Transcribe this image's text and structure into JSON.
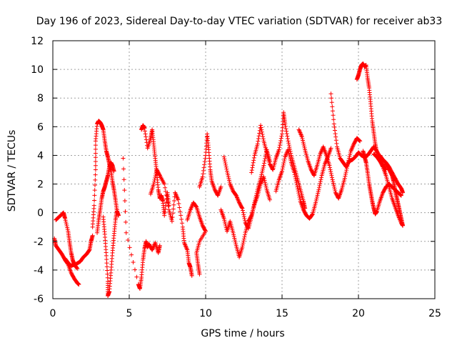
{
  "chart_data": {
    "type": "scatter",
    "title": "Day 196 of 2023, Sidereal Day-to-day VTEC variation (SDTVAR) for receiver ab33",
    "xlabel": "GPS time / hours",
    "ylabel": "SDTVAR / TECUs",
    "xlim": [
      0,
      25
    ],
    "ylim": [
      -6,
      12
    ],
    "xticks": [
      "0",
      "5",
      "10",
      "15",
      "20",
      "25"
    ],
    "yticks": [
      "-6",
      "-4",
      "-2",
      "0",
      "2",
      "4",
      "6",
      "8",
      "10",
      "12"
    ],
    "grid": true,
    "marker": "+",
    "color": "#ff0000",
    "segments": [
      [
        [
          0.1,
          -1.8
        ],
        [
          0.2,
          -2.3
        ],
        [
          0.4,
          -2.6
        ],
        [
          0.6,
          -2.9
        ],
        [
          0.8,
          -3.3
        ],
        [
          1.0,
          -3.6
        ],
        [
          1.2,
          -4.2
        ],
        [
          1.4,
          -4.6
        ],
        [
          1.6,
          -4.9
        ],
        [
          1.7,
          -5.0
        ]
      ],
      [
        [
          0.2,
          -0.5
        ],
        [
          0.4,
          -0.3
        ],
        [
          0.6,
          -0.1
        ],
        [
          0.7,
          0.0
        ],
        [
          0.8,
          -0.4
        ],
        [
          1.0,
          -1.3
        ],
        [
          1.1,
          -2.1
        ],
        [
          1.2,
          -2.8
        ],
        [
          1.3,
          -3.3
        ],
        [
          1.4,
          -3.6
        ],
        [
          1.6,
          -3.9
        ]
      ],
      [
        [
          0.8,
          -3.2
        ],
        [
          1.0,
          -3.5
        ],
        [
          1.2,
          -3.7
        ],
        [
          1.5,
          -3.6
        ],
        [
          1.8,
          -3.4
        ],
        [
          2.0,
          -3.1
        ],
        [
          2.2,
          -2.9
        ],
        [
          2.4,
          -2.6
        ],
        [
          2.5,
          -2.0
        ],
        [
          2.6,
          -1.6
        ]
      ],
      [
        [
          2.6,
          -1.0
        ],
        [
          2.7,
          0.5
        ],
        [
          2.8,
          3.0
        ],
        [
          2.8,
          5.0
        ],
        [
          2.9,
          6.2
        ],
        [
          3.0,
          6.4
        ],
        [
          3.1,
          6.3
        ],
        [
          3.2,
          6.1
        ],
        [
          3.3,
          5.8
        ],
        [
          3.4,
          5.0
        ],
        [
          3.5,
          4.3
        ],
        [
          3.6,
          3.9
        ],
        [
          3.7,
          3.4
        ],
        [
          3.8,
          3.0
        ],
        [
          3.9,
          2.2
        ],
        [
          4.0,
          1.6
        ],
        [
          4.1,
          0.9
        ],
        [
          4.2,
          0.1
        ],
        [
          4.3,
          -0.2
        ]
      ],
      [
        [
          2.9,
          -1.4
        ],
        [
          3.0,
          -0.5
        ],
        [
          3.1,
          0.2
        ],
        [
          3.2,
          1.0
        ],
        [
          3.3,
          1.5
        ],
        [
          3.4,
          1.8
        ],
        [
          3.5,
          2.2
        ],
        [
          3.6,
          2.6
        ],
        [
          3.7,
          3.2
        ],
        [
          3.8,
          3.5
        ],
        [
          3.9,
          3.3
        ],
        [
          4.0,
          2.9
        ]
      ],
      [
        [
          3.3,
          -0.3
        ],
        [
          3.4,
          -1.5
        ],
        [
          3.5,
          -3.0
        ],
        [
          3.6,
          -4.8
        ],
        [
          3.6,
          -5.8
        ],
        [
          3.7,
          -5.5
        ],
        [
          3.8,
          -4.2
        ],
        [
          3.9,
          -2.8
        ],
        [
          4.0,
          -1.6
        ],
        [
          4.1,
          -0.5
        ],
        [
          4.2,
          0.2
        ]
      ],
      [
        [
          4.6,
          3.8
        ],
        [
          4.8,
          -1.4
        ],
        [
          5.6,
          -5.0
        ],
        [
          5.7,
          -5.3
        ],
        [
          5.8,
          -4.5
        ],
        [
          5.9,
          -3.3
        ],
        [
          6.0,
          -2.5
        ],
        [
          6.1,
          -2.0
        ],
        [
          6.2,
          -2.4
        ],
        [
          6.3,
          -2.2
        ],
        [
          6.5,
          -2.6
        ],
        [
          6.7,
          -2.1
        ],
        [
          6.9,
          -2.8
        ],
        [
          7.0,
          -2.3
        ]
      ],
      [
        [
          5.8,
          5.8
        ],
        [
          5.9,
          6.1
        ],
        [
          6.0,
          5.9
        ],
        [
          6.2,
          4.5
        ],
        [
          6.4,
          5.2
        ],
        [
          6.5,
          5.8
        ],
        [
          6.6,
          4.8
        ],
        [
          6.7,
          3.8
        ],
        [
          6.8,
          2.8
        ],
        [
          6.9,
          1.6
        ],
        [
          7.0,
          1.0
        ],
        [
          7.1,
          1.2
        ],
        [
          7.2,
          0.8
        ],
        [
          7.3,
          -0.2
        ],
        [
          7.5,
          1.4
        ],
        [
          7.6,
          0.5
        ]
      ],
      [
        [
          6.4,
          1.3
        ],
        [
          6.6,
          2.0
        ],
        [
          6.8,
          3.0
        ],
        [
          7.0,
          2.6
        ],
        [
          7.3,
          2.0
        ],
        [
          7.6,
          0.2
        ],
        [
          7.8,
          -0.6
        ],
        [
          8.0,
          1.4
        ],
        [
          8.2,
          0.9
        ],
        [
          8.5,
          -1.0
        ],
        [
          8.6,
          -2.1
        ],
        [
          8.8,
          -2.6
        ],
        [
          8.9,
          -3.5
        ],
        [
          9.0,
          -3.8
        ],
        [
          9.1,
          -4.4
        ]
      ],
      [
        [
          8.8,
          -0.5
        ],
        [
          9.0,
          0.2
        ],
        [
          9.2,
          0.7
        ],
        [
          9.4,
          0.4
        ],
        [
          9.6,
          -0.3
        ],
        [
          9.8,
          -0.9
        ],
        [
          10.0,
          -1.3
        ],
        [
          9.6,
          -2.0
        ],
        [
          9.4,
          -2.8
        ],
        [
          9.5,
          -3.6
        ],
        [
          9.6,
          -4.3
        ]
      ],
      [
        [
          9.6,
          1.8
        ],
        [
          9.8,
          2.5
        ],
        [
          10.0,
          4.0
        ],
        [
          10.1,
          5.5
        ],
        [
          10.2,
          4.4
        ],
        [
          10.3,
          3.0
        ],
        [
          10.4,
          2.2
        ],
        [
          10.6,
          1.6
        ],
        [
          10.8,
          1.2
        ],
        [
          11.0,
          1.8
        ]
      ],
      [
        [
          11.0,
          0.2
        ],
        [
          11.2,
          -0.4
        ],
        [
          11.4,
          -1.3
        ],
        [
          11.6,
          -0.6
        ],
        [
          11.8,
          -1.4
        ],
        [
          12.0,
          -2.3
        ],
        [
          12.2,
          -3.1
        ],
        [
          12.4,
          -2.4
        ],
        [
          12.6,
          -1.4
        ],
        [
          12.8,
          -0.6
        ],
        [
          13.0,
          -0.2
        ],
        [
          13.2,
          0.6
        ],
        [
          13.4,
          1.2
        ],
        [
          13.6,
          2.0
        ],
        [
          13.8,
          2.5
        ],
        [
          14.0,
          1.6
        ],
        [
          14.2,
          0.9
        ]
      ],
      [
        [
          11.2,
          3.9
        ],
        [
          11.4,
          2.9
        ],
        [
          11.6,
          2.0
        ],
        [
          11.8,
          1.5
        ],
        [
          12.0,
          1.2
        ],
        [
          12.2,
          0.7
        ],
        [
          12.4,
          0.3
        ],
        [
          12.6,
          -0.7
        ],
        [
          12.8,
          -1.1
        ],
        [
          13.0,
          -0.3
        ],
        [
          13.2,
          0.7
        ],
        [
          13.4,
          1.6
        ],
        [
          13.6,
          2.4
        ],
        [
          13.8,
          3.3
        ],
        [
          14.0,
          4.4
        ],
        [
          14.2,
          3.6
        ]
      ],
      [
        [
          13.0,
          2.8
        ],
        [
          13.2,
          4.0
        ],
        [
          13.4,
          4.8
        ],
        [
          13.6,
          6.1
        ],
        [
          13.8,
          5.0
        ],
        [
          14.0,
          4.2
        ],
        [
          14.2,
          3.4
        ],
        [
          14.4,
          3.0
        ],
        [
          14.6,
          3.8
        ],
        [
          14.8,
          4.4
        ],
        [
          15.0,
          5.5
        ],
        [
          15.1,
          7.0
        ],
        [
          15.2,
          6.2
        ],
        [
          15.4,
          5.0
        ],
        [
          15.6,
          4.0
        ],
        [
          15.8,
          3.2
        ],
        [
          16.0,
          2.4
        ],
        [
          16.2,
          1.6
        ],
        [
          16.4,
          0.8
        ],
        [
          16.5,
          0.3
        ]
      ],
      [
        [
          14.6,
          1.5
        ],
        [
          14.8,
          2.3
        ],
        [
          15.0,
          2.9
        ],
        [
          15.2,
          3.9
        ],
        [
          15.4,
          4.4
        ],
        [
          15.6,
          3.5
        ],
        [
          15.8,
          2.8
        ],
        [
          16.0,
          1.8
        ],
        [
          16.2,
          0.8
        ],
        [
          16.4,
          0.2
        ],
        [
          16.6,
          -0.2
        ],
        [
          16.8,
          -0.4
        ],
        [
          17.0,
          -0.1
        ],
        [
          17.2,
          0.7
        ],
        [
          17.4,
          1.6
        ],
        [
          17.6,
          2.6
        ],
        [
          17.8,
          3.4
        ],
        [
          18.0,
          3.9
        ],
        [
          18.2,
          4.5
        ]
      ],
      [
        [
          16.1,
          5.8
        ],
        [
          16.3,
          5.3
        ],
        [
          16.5,
          4.4
        ],
        [
          16.7,
          3.6
        ],
        [
          16.9,
          3.0
        ],
        [
          17.1,
          2.6
        ],
        [
          17.3,
          3.3
        ],
        [
          17.5,
          4.1
        ],
        [
          17.7,
          4.6
        ],
        [
          17.9,
          4.0
        ],
        [
          18.1,
          3.3
        ],
        [
          18.3,
          2.3
        ],
        [
          18.5,
          1.4
        ],
        [
          18.7,
          1.0
        ],
        [
          18.9,
          1.6
        ],
        [
          19.1,
          2.4
        ],
        [
          19.3,
          3.4
        ],
        [
          19.5,
          4.3
        ],
        [
          19.7,
          4.8
        ],
        [
          19.9,
          5.2
        ],
        [
          20.1,
          5.0
        ]
      ],
      [
        [
          18.2,
          8.3
        ],
        [
          18.4,
          6.2
        ],
        [
          18.6,
          4.6
        ],
        [
          18.8,
          3.8
        ],
        [
          19.0,
          3.5
        ],
        [
          19.2,
          3.2
        ],
        [
          19.4,
          3.6
        ],
        [
          19.6,
          3.7
        ],
        [
          19.8,
          3.9
        ],
        [
          20.0,
          4.2
        ],
        [
          20.2,
          4.0
        ],
        [
          20.4,
          3.9
        ],
        [
          20.6,
          4.0
        ],
        [
          20.8,
          4.3
        ],
        [
          21.0,
          4.6
        ],
        [
          21.2,
          4.3
        ],
        [
          21.4,
          3.9
        ],
        [
          21.6,
          3.4
        ],
        [
          21.8,
          3.0
        ]
      ],
      [
        [
          19.9,
          9.3
        ],
        [
          20.0,
          9.6
        ],
        [
          20.1,
          10.0
        ],
        [
          20.2,
          10.3
        ],
        [
          20.3,
          10.4
        ],
        [
          20.4,
          10.2
        ],
        [
          20.5,
          10.3
        ],
        [
          20.6,
          9.4
        ],
        [
          20.7,
          8.7
        ],
        [
          20.8,
          7.6
        ],
        [
          20.9,
          6.4
        ],
        [
          21.0,
          5.6
        ],
        [
          21.1,
          4.8
        ],
        [
          21.2,
          4.2
        ]
      ],
      [
        [
          20.3,
          4.3
        ],
        [
          20.4,
          3.9
        ],
        [
          20.5,
          3.5
        ],
        [
          20.6,
          2.8
        ],
        [
          20.7,
          2.0
        ],
        [
          20.8,
          1.4
        ],
        [
          20.9,
          0.8
        ],
        [
          21.0,
          0.3
        ],
        [
          21.1,
          -0.1
        ],
        [
          21.2,
          0.1
        ],
        [
          21.4,
          0.8
        ],
        [
          21.6,
          1.4
        ],
        [
          21.8,
          1.8
        ],
        [
          22.0,
          2.0
        ],
        [
          22.2,
          1.8
        ],
        [
          22.4,
          1.6
        ],
        [
          22.6,
          1.4
        ],
        [
          22.8,
          1.2
        ]
      ],
      [
        [
          21.0,
          4.1
        ],
        [
          21.2,
          3.9
        ],
        [
          21.4,
          3.6
        ],
        [
          21.6,
          3.2
        ],
        [
          21.8,
          2.6
        ],
        [
          22.0,
          1.8
        ],
        [
          22.2,
          1.0
        ],
        [
          22.4,
          0.4
        ],
        [
          22.6,
          -0.2
        ],
        [
          22.8,
          -0.7
        ],
        [
          22.9,
          -0.9
        ],
        [
          22.8,
          -0.4
        ],
        [
          22.7,
          0.1
        ],
        [
          22.6,
          0.6
        ],
        [
          22.5,
          1.1
        ],
        [
          22.4,
          1.6
        ],
        [
          22.3,
          2.2
        ],
        [
          22.2,
          2.6
        ],
        [
          22.0,
          3.0
        ],
        [
          21.8,
          3.4
        ]
      ],
      [
        [
          21.4,
          4.0
        ],
        [
          21.6,
          3.7
        ],
        [
          21.8,
          3.5
        ],
        [
          22.0,
          3.2
        ],
        [
          22.2,
          2.8
        ],
        [
          22.4,
          2.4
        ],
        [
          22.6,
          2.0
        ],
        [
          22.8,
          1.7
        ],
        [
          22.9,
          1.4
        ]
      ]
    ]
  }
}
